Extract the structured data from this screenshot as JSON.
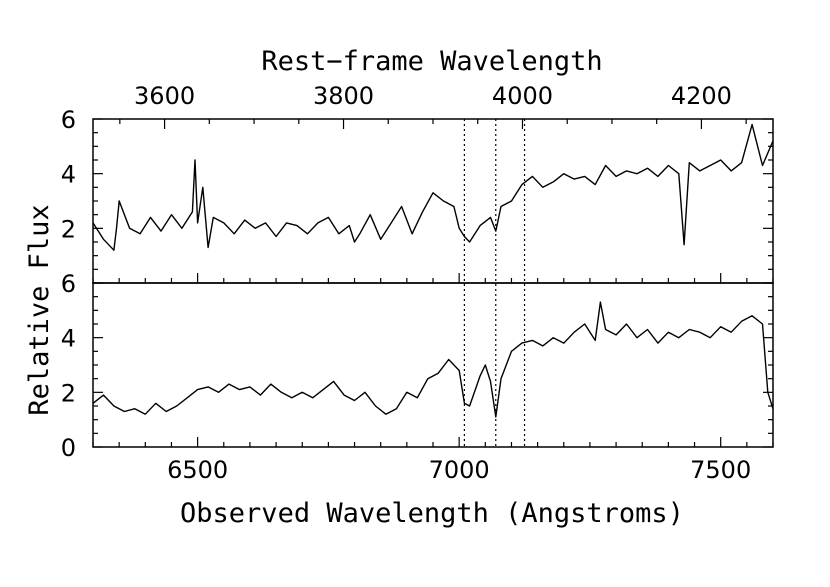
{
  "chart_data": {
    "type": "line",
    "top_axis": {
      "title": "Rest−frame Wavelength",
      "range": [
        3520,
        4280
      ],
      "ticks": [
        3600,
        3800,
        4000,
        4200
      ],
      "tick_labels": [
        "3600",
        "3800",
        "4000",
        "4200"
      ]
    },
    "bottom_axis": {
      "title": "Observed Wavelength (Angstroms)",
      "range": [
        6300,
        7600
      ],
      "ticks": [
        6500,
        7000,
        7500
      ],
      "tick_labels": [
        "6500",
        "7000",
        "7500"
      ]
    },
    "y_axis": {
      "title": "Relative Flux",
      "panel_range": [
        0,
        6
      ],
      "top_panel_tick_labels": [
        "6",
        "4",
        "2"
      ],
      "bottom_panel_tick_labels": [
        "6",
        "4",
        "2",
        "0"
      ]
    },
    "reference_lines": [
      7010,
      7070,
      7125
    ],
    "panels": [
      {
        "name": "top spectrum",
        "x": [
          6300,
          6320,
          6340,
          6345,
          6350,
          6370,
          6390,
          6410,
          6430,
          6450,
          6470,
          6490,
          6495,
          6500,
          6510,
          6520,
          6530,
          6550,
          6570,
          6590,
          6610,
          6630,
          6650,
          6670,
          6690,
          6710,
          6730,
          6750,
          6770,
          6790,
          6800,
          6810,
          6830,
          6850,
          6870,
          6890,
          6910,
          6930,
          6950,
          6970,
          6990,
          7000,
          7010,
          7020,
          7040,
          7060,
          7070,
          7080,
          7100,
          7120,
          7140,
          7160,
          7180,
          7200,
          7220,
          7240,
          7260,
          7280,
          7300,
          7320,
          7340,
          7360,
          7380,
          7400,
          7420,
          7430,
          7440,
          7460,
          7480,
          7500,
          7520,
          7540,
          7560,
          7580,
          7600
        ],
        "y": [
          2.2,
          1.6,
          1.2,
          2.0,
          3.0,
          2.0,
          1.8,
          2.4,
          1.9,
          2.5,
          2.0,
          2.6,
          4.5,
          2.2,
          3.5,
          1.3,
          2.4,
          2.2,
          1.8,
          2.3,
          2.0,
          2.2,
          1.7,
          2.2,
          2.1,
          1.8,
          2.2,
          2.4,
          1.8,
          2.1,
          1.5,
          1.8,
          2.5,
          1.6,
          2.2,
          2.8,
          1.8,
          2.6,
          3.3,
          3.0,
          2.8,
          2.0,
          1.7,
          1.5,
          2.1,
          2.4,
          1.9,
          2.8,
          3.0,
          3.6,
          3.9,
          3.5,
          3.7,
          4.0,
          3.8,
          3.9,
          3.6,
          4.3,
          3.9,
          4.1,
          4.0,
          4.2,
          3.9,
          4.3,
          4.0,
          1.4,
          4.4,
          4.1,
          4.3,
          4.5,
          4.1,
          4.4,
          5.8,
          4.3,
          5.2
        ]
      },
      {
        "name": "bottom spectrum",
        "x": [
          6300,
          6320,
          6340,
          6360,
          6380,
          6400,
          6420,
          6440,
          6460,
          6480,
          6500,
          6520,
          6540,
          6560,
          6580,
          6600,
          6620,
          6640,
          6660,
          6680,
          6700,
          6720,
          6740,
          6760,
          6780,
          6800,
          6820,
          6840,
          6860,
          6880,
          6900,
          6920,
          6940,
          6960,
          6980,
          7000,
          7010,
          7020,
          7040,
          7050,
          7060,
          7070,
          7080,
          7100,
          7120,
          7140,
          7160,
          7180,
          7200,
          7220,
          7240,
          7260,
          7270,
          7280,
          7300,
          7320,
          7340,
          7360,
          7380,
          7400,
          7420,
          7440,
          7460,
          7480,
          7500,
          7520,
          7540,
          7560,
          7580,
          7590,
          7600
        ],
        "y": [
          1.6,
          1.9,
          1.5,
          1.3,
          1.4,
          1.2,
          1.6,
          1.3,
          1.5,
          1.8,
          2.1,
          2.2,
          2.0,
          2.3,
          2.1,
          2.2,
          1.9,
          2.3,
          2.0,
          1.8,
          2.0,
          1.8,
          2.1,
          2.4,
          1.9,
          1.7,
          2.0,
          1.5,
          1.2,
          1.4,
          2.0,
          1.8,
          2.5,
          2.7,
          3.2,
          2.8,
          1.6,
          1.5,
          2.6,
          3.0,
          2.4,
          1.1,
          2.5,
          3.5,
          3.8,
          3.9,
          3.7,
          4.0,
          3.8,
          4.2,
          4.5,
          3.9,
          5.3,
          4.3,
          4.1,
          4.5,
          4.0,
          4.3,
          3.8,
          4.2,
          4.0,
          4.3,
          4.2,
          4.0,
          4.4,
          4.2,
          4.6,
          4.8,
          4.5,
          2.0,
          1.4
        ]
      }
    ]
  }
}
